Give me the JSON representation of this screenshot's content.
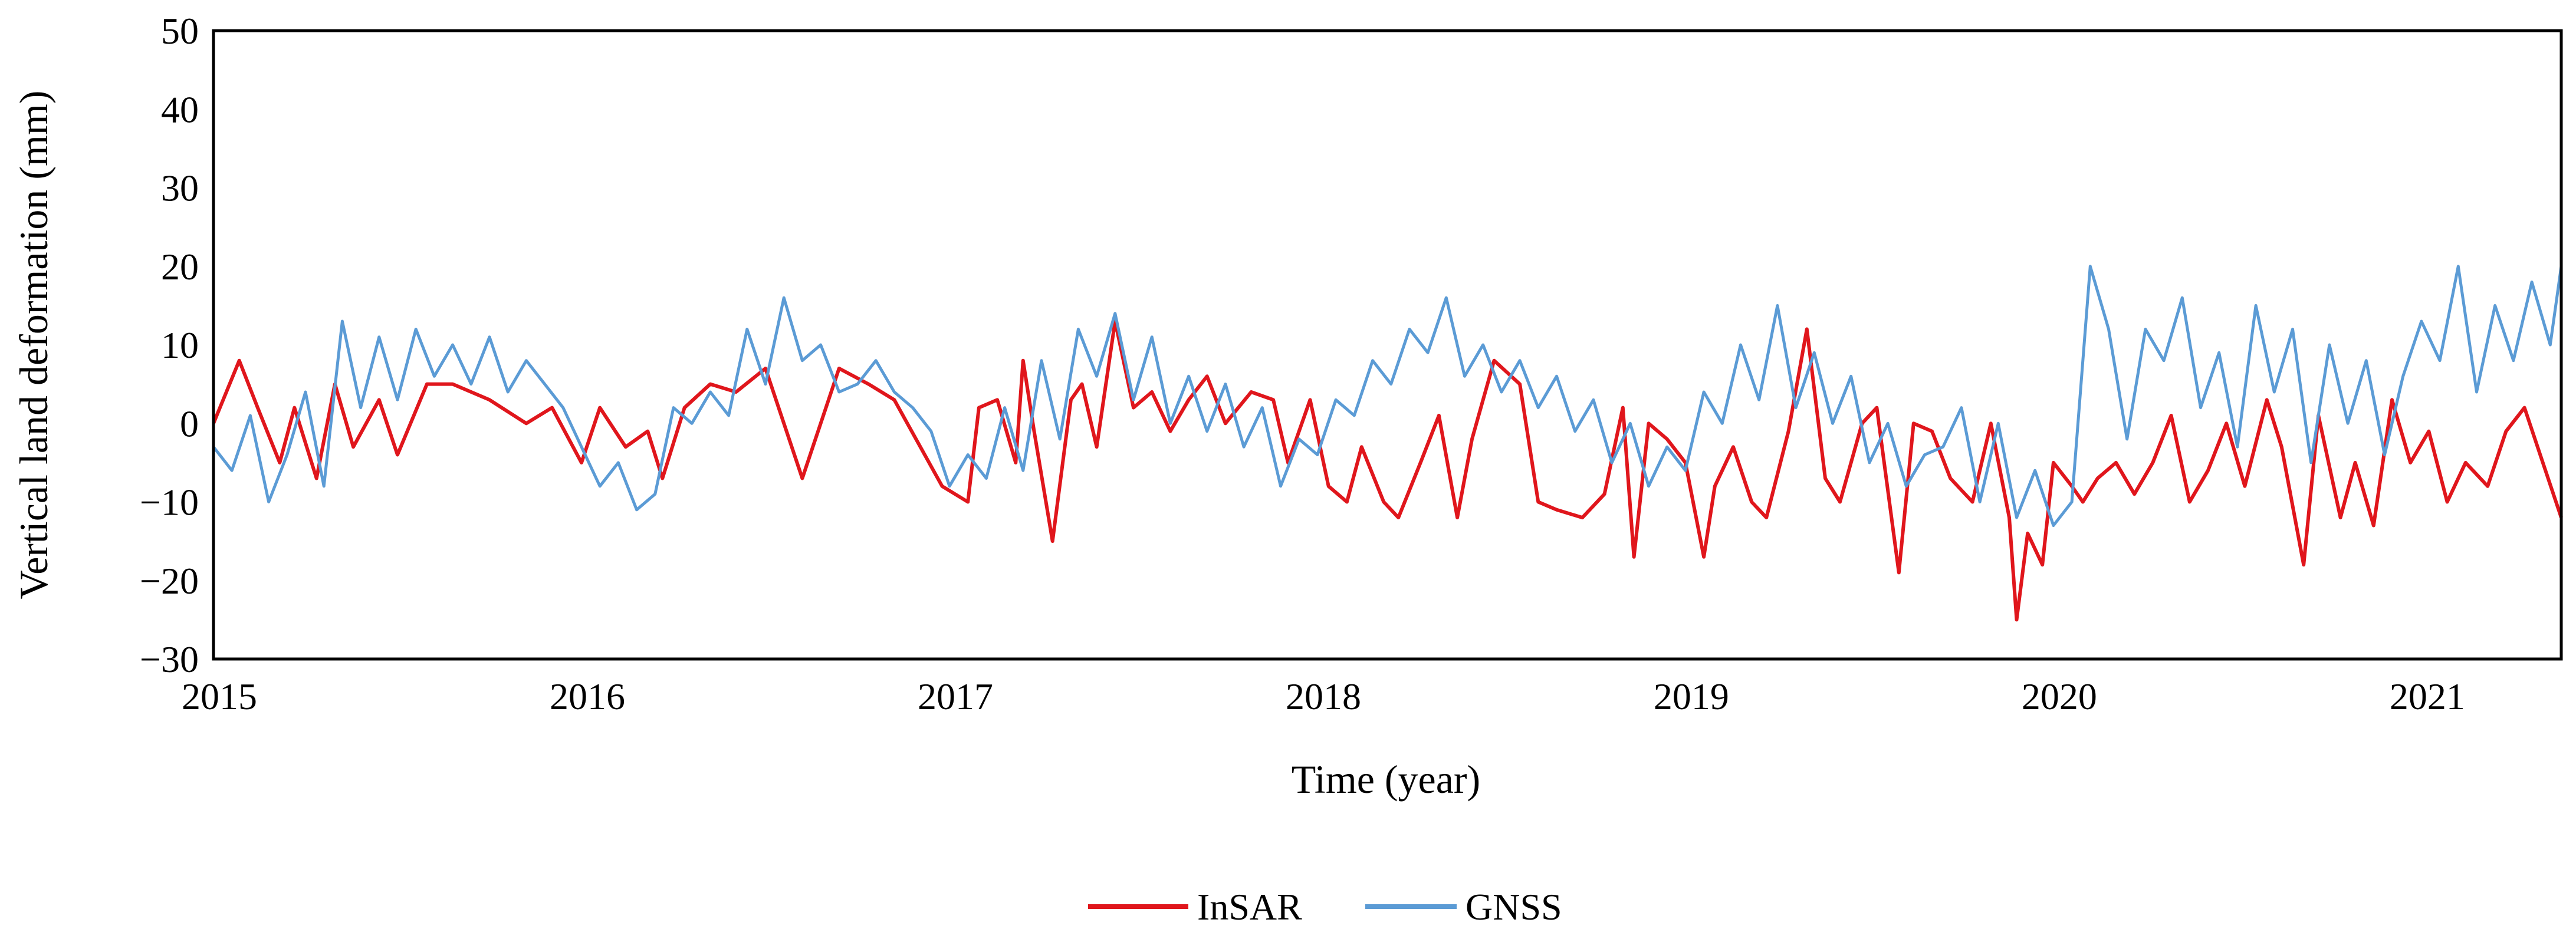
{
  "chart_data": {
    "type": "line",
    "title": "",
    "xlabel": "Time (year)",
    "ylabel": "Vertical land deformation (mm)",
    "xlim": [
      2015,
      2021.38
    ],
    "ylim": [
      -30,
      50
    ],
    "xticks": [
      2015,
      2016,
      2017,
      2018,
      2019,
      2020,
      2021
    ],
    "xtick_labels": [
      "2015",
      "2016",
      "2017",
      "2018",
      "2019",
      "2020",
      "2021"
    ],
    "yticks": [
      -30,
      -20,
      -10,
      0,
      10,
      20,
      30,
      40,
      50
    ],
    "ytick_labels": [
      "−30",
      "−20",
      "−10",
      "0",
      "10",
      "20",
      "30",
      "40",
      "50"
    ],
    "grid": false,
    "legend_position": "bottom-center",
    "series": [
      {
        "name": "InSAR",
        "color": "#e0161c",
        "x": [
          2015.0,
          2015.07,
          2015.12,
          2015.18,
          2015.22,
          2015.28,
          2015.33,
          2015.38,
          2015.45,
          2015.5,
          2015.58,
          2015.65,
          2015.75,
          2015.85,
          2015.92,
          2016.0,
          2016.05,
          2016.12,
          2016.18,
          2016.22,
          2016.28,
          2016.35,
          2016.42,
          2016.5,
          2016.6,
          2016.65,
          2016.7,
          2016.78,
          2016.85,
          2016.98,
          2017.05,
          2017.08,
          2017.13,
          2017.18,
          2017.2,
          2017.23,
          2017.28,
          2017.33,
          2017.36,
          2017.4,
          2017.45,
          2017.5,
          2017.55,
          2017.6,
          2017.65,
          2017.7,
          2017.75,
          2017.82,
          2017.88,
          2017.92,
          2017.98,
          2018.03,
          2018.08,
          2018.12,
          2018.18,
          2018.22,
          2018.28,
          2018.33,
          2018.38,
          2018.42,
          2018.48,
          2018.55,
          2018.6,
          2018.65,
          2018.72,
          2018.78,
          2018.83,
          2018.86,
          2018.9,
          2018.95,
          2019.0,
          2019.05,
          2019.08,
          2019.13,
          2019.18,
          2019.22,
          2019.28,
          2019.33,
          2019.38,
          2019.42,
          2019.48,
          2019.52,
          2019.58,
          2019.62,
          2019.67,
          2019.72,
          2019.78,
          2019.83,
          2019.88,
          2019.9,
          2019.93,
          2019.97,
          2020.0,
          2020.05,
          2020.08,
          2020.12,
          2020.17,
          2020.22,
          2020.27,
          2020.32,
          2020.37,
          2020.42,
          2020.47,
          2020.52,
          2020.58,
          2020.62,
          2020.68,
          2020.72,
          2020.78,
          2020.82,
          2020.87,
          2020.92,
          2020.97,
          2021.02,
          2021.07,
          2021.12,
          2021.18,
          2021.23,
          2021.28,
          2021.33,
          2021.38
        ],
        "y": [
          0,
          8,
          2,
          -5,
          2,
          -7,
          5,
          -3,
          3,
          -4,
          5,
          5,
          3,
          0,
          2,
          -5,
          2,
          -3,
          -1,
          -7,
          2,
          5,
          4,
          7,
          -7,
          0,
          7,
          5,
          3,
          -8,
          -10,
          2,
          3,
          -5,
          8,
          -1,
          -15,
          3,
          5,
          -3,
          13,
          2,
          4,
          -1,
          3,
          6,
          0,
          4,
          3,
          -5,
          3,
          -8,
          -10,
          -3,
          -10,
          -12,
          -5,
          1,
          -12,
          -2,
          8,
          5,
          -10,
          -11,
          -12,
          -9,
          2,
          -17,
          0,
          -2,
          -5,
          -17,
          -8,
          -3,
          -10,
          -12,
          -1,
          12,
          -7,
          -10,
          0,
          2,
          -19,
          0,
          -1,
          -7,
          -10,
          0,
          -12,
          -25,
          -14,
          -18,
          -5,
          -8,
          -10,
          -7,
          -5,
          -9,
          -5,
          1,
          -10,
          -6,
          0,
          -8,
          3,
          -3,
          -18,
          1,
          -12,
          -5,
          -13,
          3,
          -5,
          -1,
          -10,
          -5,
          -8,
          -1,
          2,
          -5,
          -12
        ]
      },
      {
        "name": "GNSS",
        "color": "#5b9bd5",
        "x": [
          2015.0,
          2015.05,
          2015.1,
          2015.15,
          2015.2,
          2015.25,
          2015.3,
          2015.35,
          2015.4,
          2015.45,
          2015.5,
          2015.55,
          2015.6,
          2015.65,
          2015.7,
          2015.75,
          2015.8,
          2015.85,
          2015.9,
          2015.95,
          2016.0,
          2016.05,
          2016.1,
          2016.15,
          2016.2,
          2016.25,
          2016.3,
          2016.35,
          2016.4,
          2016.45,
          2016.5,
          2016.55,
          2016.6,
          2016.65,
          2016.7,
          2016.75,
          2016.8,
          2016.85,
          2016.9,
          2016.95,
          2017.0,
          2017.05,
          2017.1,
          2017.15,
          2017.2,
          2017.25,
          2017.3,
          2017.35,
          2017.4,
          2017.45,
          2017.5,
          2017.55,
          2017.6,
          2017.65,
          2017.7,
          2017.75,
          2017.8,
          2017.85,
          2017.9,
          2017.95,
          2018.0,
          2018.05,
          2018.1,
          2018.15,
          2018.2,
          2018.25,
          2018.3,
          2018.35,
          2018.4,
          2018.45,
          2018.5,
          2018.55,
          2018.6,
          2018.65,
          2018.7,
          2018.75,
          2018.8,
          2018.85,
          2018.9,
          2018.95,
          2019.0,
          2019.05,
          2019.1,
          2019.15,
          2019.2,
          2019.25,
          2019.3,
          2019.35,
          2019.4,
          2019.45,
          2019.5,
          2019.55,
          2019.6,
          2019.65,
          2019.7,
          2019.75,
          2019.8,
          2019.85,
          2019.9,
          2019.95,
          2020.0,
          2020.05,
          2020.1,
          2020.15,
          2020.2,
          2020.25,
          2020.3,
          2020.35,
          2020.4,
          2020.45,
          2020.5,
          2020.55,
          2020.6,
          2020.65,
          2020.7,
          2020.75,
          2020.8,
          2020.85,
          2020.9,
          2020.95,
          2021.0,
          2021.05,
          2021.1,
          2021.15,
          2021.2,
          2021.25,
          2021.3,
          2021.35,
          2021.38
        ],
        "y": [
          -3,
          -6,
          1,
          -10,
          -4,
          4,
          -8,
          13,
          2,
          11,
          3,
          12,
          6,
          10,
          5,
          11,
          4,
          8,
          5,
          2,
          -3,
          -8,
          -5,
          -11,
          -9,
          2,
          0,
          4,
          1,
          12,
          5,
          16,
          8,
          10,
          4,
          5,
          8,
          4,
          2,
          -1,
          -8,
          -4,
          -7,
          2,
          -6,
          8,
          -2,
          12,
          6,
          14,
          3,
          11,
          0,
          6,
          -1,
          5,
          -3,
          2,
          -8,
          -2,
          -4,
          3,
          1,
          8,
          5,
          12,
          9,
          16,
          6,
          10,
          4,
          8,
          2,
          6,
          -1,
          3,
          -5,
          0,
          -8,
          -3,
          -6,
          4,
          0,
          10,
          3,
          15,
          2,
          9,
          0,
          6,
          -5,
          0,
          -8,
          -4,
          -3,
          2,
          -10,
          0,
          -12,
          -6,
          -13,
          -10,
          20,
          12,
          -2,
          12,
          8,
          16,
          2,
          9,
          -3,
          15,
          4,
          12,
          -5,
          10,
          0,
          8,
          -4,
          6,
          13,
          8,
          20,
          4,
          15,
          8,
          18,
          10,
          20
        ]
      }
    ]
  }
}
